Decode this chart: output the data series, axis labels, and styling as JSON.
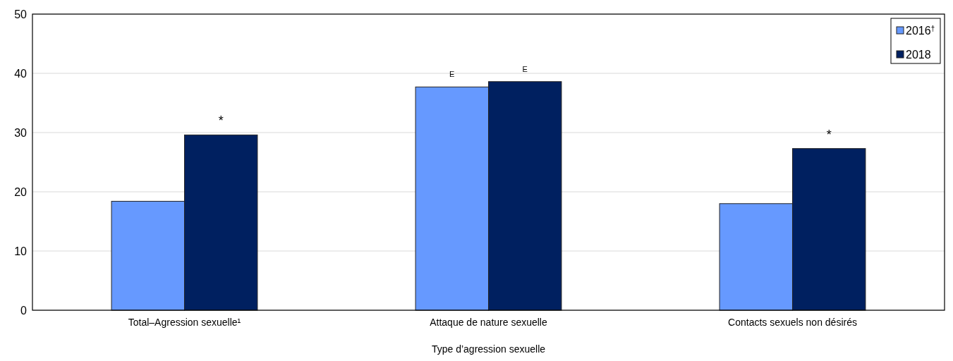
{
  "chart_data": {
    "type": "bar",
    "xlabel": "Type d’agression sexuelle",
    "categories": [
      "Total–Agression sexuelle¹",
      "Attaque de nature sexuelle",
      "Contacts sexuels non désirés"
    ],
    "series": [
      {
        "name": "2016$^{†}$",
        "color": "#6699ff",
        "values": [
          18.4,
          37.7,
          18.0
        ],
        "value_labels": [
          null,
          "E",
          null
        ]
      },
      {
        "name": "2018",
        "color": "#002060",
        "values": [
          29.6,
          38.6,
          27.3
        ],
        "value_labels": [
          "*",
          "E",
          "*"
        ]
      }
    ],
    "ylim": [
      0,
      50
    ],
    "yticks": [
      0,
      10,
      20,
      30,
      40,
      50
    ],
    "grid": "y",
    "legend": "top right"
  }
}
